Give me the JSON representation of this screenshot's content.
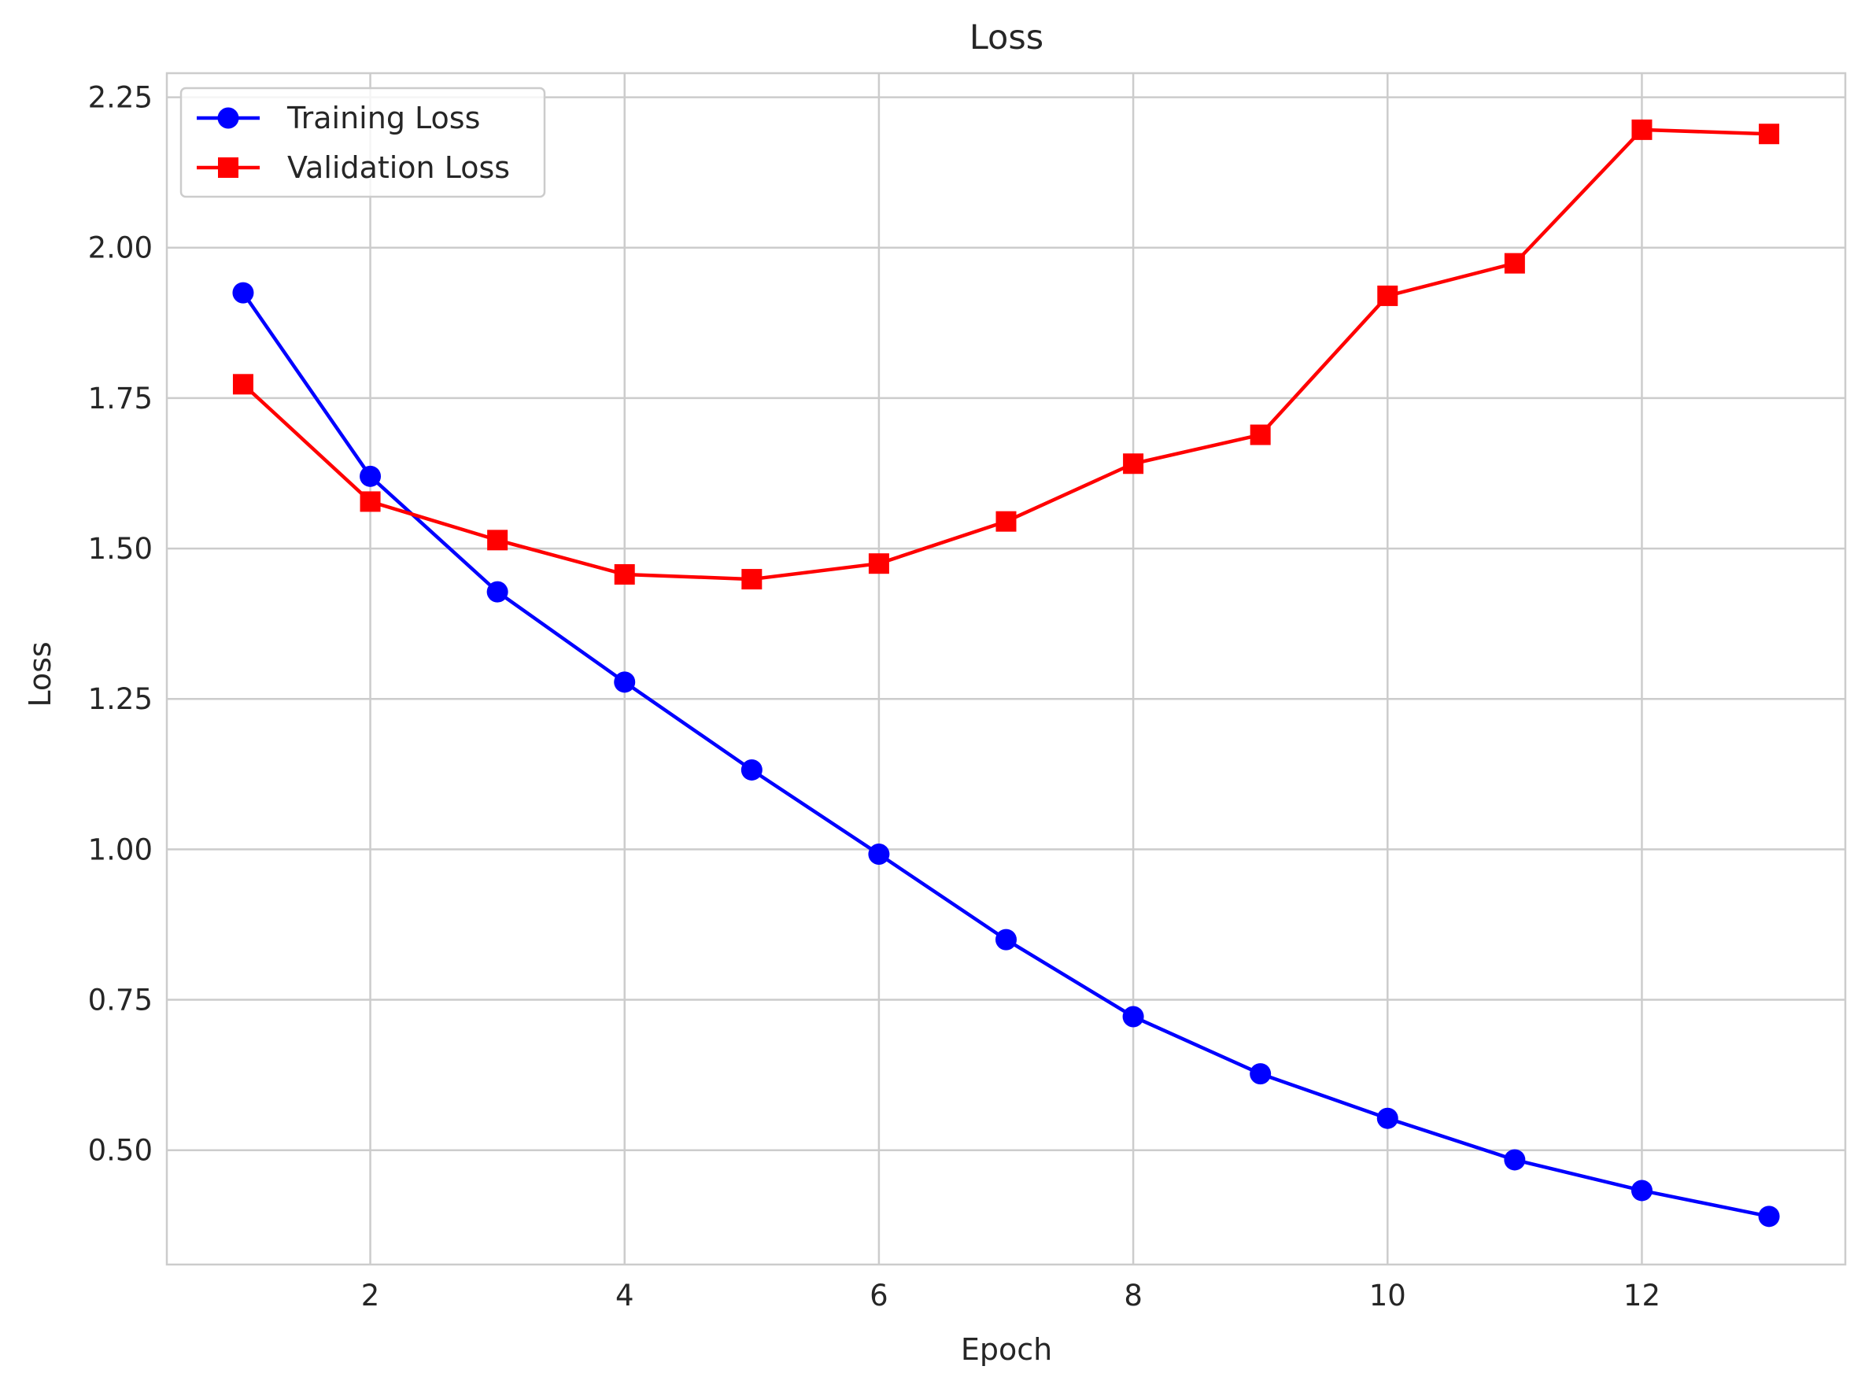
{
  "chart_data": {
    "type": "line",
    "title": "Loss",
    "xlabel": "Epoch",
    "ylabel": "Loss",
    "x": [
      1,
      2,
      3,
      4,
      5,
      6,
      7,
      8,
      9,
      10,
      11,
      12,
      13
    ],
    "xlim": [
      0.4,
      13.6
    ],
    "ylim": [
      0.31,
      2.29
    ],
    "xticks": [
      2,
      4,
      6,
      8,
      10,
      12
    ],
    "xtick_labels": [
      "2",
      "4",
      "6",
      "8",
      "10",
      "12"
    ],
    "yticks": [
      0.5,
      0.75,
      1.0,
      1.25,
      1.5,
      1.75,
      2.0,
      2.25
    ],
    "ytick_labels": [
      "0.50",
      "0.75",
      "1.00",
      "1.25",
      "1.50",
      "1.75",
      "2.00",
      "2.25"
    ],
    "grid": true,
    "legend_position": "upper left",
    "series": [
      {
        "name": "Training Loss",
        "color": "#0000ff",
        "marker": "circle",
        "values": [
          1.925,
          1.62,
          1.428,
          1.278,
          1.132,
          0.992,
          0.85,
          0.722,
          0.627,
          0.553,
          0.484,
          0.433,
          0.39
        ]
      },
      {
        "name": "Validation Loss",
        "color": "#ff0000",
        "marker": "square",
        "values": [
          1.773,
          1.578,
          1.514,
          1.457,
          1.449,
          1.475,
          1.545,
          1.641,
          1.689,
          1.92,
          1.974,
          2.196,
          2.189
        ]
      }
    ]
  }
}
